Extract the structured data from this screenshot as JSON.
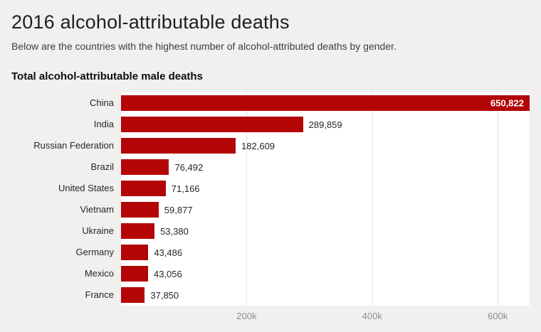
{
  "page": {
    "title": "2016 alcohol-attributable deaths",
    "subtitle": "Below are the countries with the highest number of alcohol-attributed deaths by gender."
  },
  "colors": {
    "bar": "#b30505",
    "page_background": "#f1f0ee",
    "plot_background": "#ffffff",
    "inside_label": "#ffffff",
    "outside_label": "#262626",
    "tick_label": "#8f8f8f"
  },
  "chart_data": {
    "type": "bar",
    "orientation": "horizontal",
    "title": "Total alcohol-attributable male deaths",
    "categories": [
      "China",
      "India",
      "Russian Federation",
      "Brazil",
      "United States",
      "Vietnam",
      "Ukraine",
      "Germany",
      "Mexico",
      "France"
    ],
    "values": [
      650822,
      289859,
      182609,
      76492,
      71166,
      59877,
      53380,
      43486,
      43056,
      37850
    ],
    "value_labels": [
      "650,822",
      "289,859",
      "182,609",
      "76,492",
      "71,166",
      "59,877",
      "53,380",
      "43,486",
      "43,056",
      "37,850"
    ],
    "x_ticks": [
      {
        "value": 200000,
        "label": "200k"
      },
      {
        "value": 400000,
        "label": "400k"
      },
      {
        "value": 600000,
        "label": "600k"
      }
    ],
    "xlim": [
      0,
      650822
    ],
    "grid": true,
    "legend": "none"
  }
}
